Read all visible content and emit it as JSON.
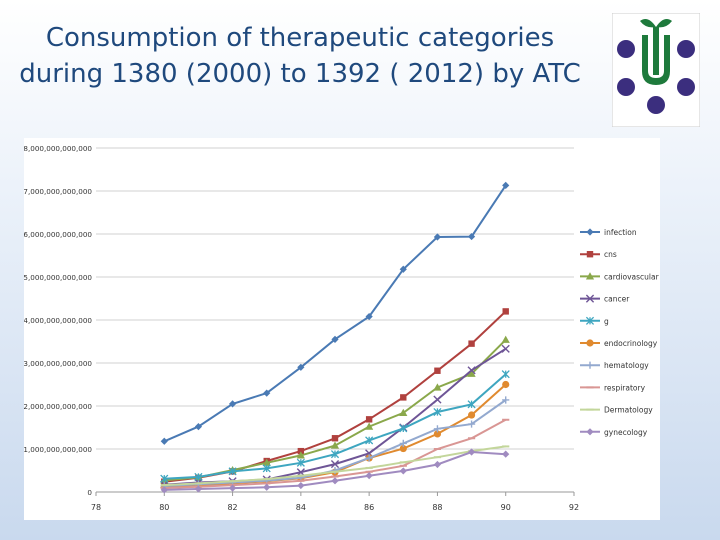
{
  "slide": {
    "title_line1": "Consumption of therapeutic categories",
    "title_line2": "during 1380 (2000) to 1392 ( 2012) by ATC",
    "title_color": "#1f497d"
  },
  "logo": {
    "icon": "pharmacy-logo-icon",
    "green": "#1e7a3c",
    "purple": "#3b2e7e"
  },
  "chart_data": {
    "type": "line",
    "x": [
      80,
      81,
      82,
      83,
      84,
      85,
      86,
      87,
      88,
      89,
      90
    ],
    "xlim": [
      78,
      92
    ],
    "xticks": [
      "78",
      "80",
      "82",
      "84",
      "86",
      "88",
      "90",
      "92"
    ],
    "ylim": [
      0,
      8000000000000
    ],
    "yticks": [
      "0",
      "1,000,000,000,000",
      "2,000,000,000,000",
      "3,000,000,000,000",
      "4,000,000,000,000",
      "5,000,000,000,000",
      "6,000,000,000,000",
      "7,000,000,000,000",
      "8,000,000,000,000"
    ],
    "grid": true,
    "legend": "right",
    "series": [
      {
        "name": "infection",
        "color": "#4a7ab4",
        "marker": "diamond",
        "values": [
          1180000000000,
          1520000000000,
          2050000000000,
          2300000000000,
          2900000000000,
          3550000000000,
          4080000000000,
          5180000000000,
          5930000000000,
          5940000000000,
          7130000000000
        ]
      },
      {
        "name": "cns",
        "color": "#b0413e",
        "marker": "square",
        "values": [
          240000000000,
          330000000000,
          480000000000,
          720000000000,
          950000000000,
          1250000000000,
          1690000000000,
          2200000000000,
          2820000000000,
          3450000000000,
          4200000000000
        ]
      },
      {
        "name": "cardiovascular",
        "color": "#8aa84b",
        "marker": "triangle",
        "values": [
          270000000000,
          340000000000,
          510000000000,
          680000000000,
          850000000000,
          1080000000000,
          1520000000000,
          1840000000000,
          2430000000000,
          2750000000000,
          3540000000000
        ]
      },
      {
        "name": "cancer",
        "color": "#6e5596",
        "marker": "x",
        "values": [
          170000000000,
          220000000000,
          250000000000,
          290000000000,
          460000000000,
          650000000000,
          900000000000,
          1500000000000,
          2150000000000,
          2830000000000,
          3330000000000
        ]
      },
      {
        "name": "g",
        "color": "#3ea6c0",
        "marker": "star",
        "values": [
          310000000000,
          350000000000,
          480000000000,
          550000000000,
          680000000000,
          880000000000,
          1200000000000,
          1480000000000,
          1860000000000,
          2040000000000,
          2740000000000
        ]
      },
      {
        "name": "endocrinology",
        "color": "#e08a2f",
        "marker": "circle",
        "values": [
          110000000000,
          150000000000,
          200000000000,
          250000000000,
          320000000000,
          460000000000,
          790000000000,
          1010000000000,
          1350000000000,
          1790000000000,
          2500000000000
        ]
      },
      {
        "name": "hematology",
        "color": "#93a9cf",
        "marker": "plus",
        "values": [
          140000000000,
          180000000000,
          220000000000,
          260000000000,
          330000000000,
          500000000000,
          790000000000,
          1130000000000,
          1470000000000,
          1580000000000,
          2140000000000
        ]
      },
      {
        "name": "respiratory",
        "color": "#d99694",
        "marker": "dash",
        "values": [
          90000000000,
          120000000000,
          160000000000,
          200000000000,
          260000000000,
          360000000000,
          470000000000,
          610000000000,
          1000000000000,
          1250000000000,
          1680000000000
        ]
      },
      {
        "name": "Dermatology",
        "color": "#c3d69b",
        "marker": "dash",
        "values": [
          160000000000,
          200000000000,
          250000000000,
          300000000000,
          380000000000,
          470000000000,
          560000000000,
          690000000000,
          810000000000,
          950000000000,
          1060000000000
        ]
      },
      {
        "name": "gynecology",
        "color": "#a08bc0",
        "marker": "diamond",
        "values": [
          50000000000,
          70000000000,
          90000000000,
          110000000000,
          150000000000,
          260000000000,
          380000000000,
          490000000000,
          640000000000,
          930000000000,
          880000000000
        ]
      }
    ]
  }
}
